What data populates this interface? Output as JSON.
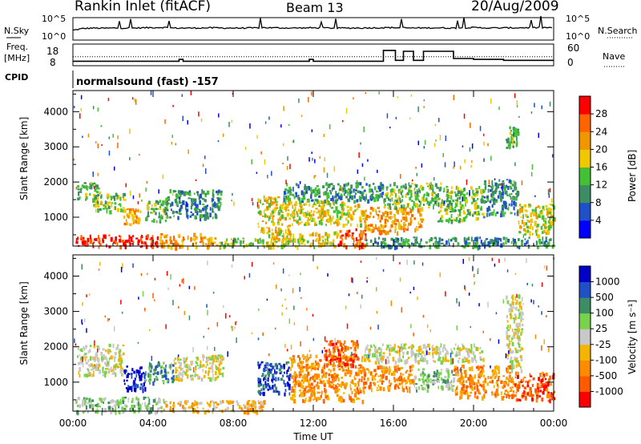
{
  "header": {
    "station": "Rankin Inlet (fitACF)",
    "beam": "Beam 13",
    "date": "20/Aug/2009"
  },
  "mode_label": "normalsound (fast) -157",
  "colors": {
    "power": [
      "#0000ff",
      "#1f50c8",
      "#3c8c64",
      "#44c034",
      "#f0c800",
      "#f09600",
      "#ff6400",
      "#ff0000"
    ],
    "velocity": [
      "#ff0000",
      "#ff5a00",
      "#ff8c00",
      "#f5b400",
      "#c8c8c8",
      "#78d24b",
      "#3c8c64",
      "#1f50c8",
      "#0000c8"
    ]
  },
  "chart_data": [
    {
      "type": "line",
      "name": "sky-noise-panel",
      "ylabel_left": "N.Sky",
      "ylabel_right": "N.Search",
      "yticks_left": [
        "10^5",
        "10^0"
      ],
      "yticks_right": [
        "10^5",
        "10^0"
      ],
      "xlim": [
        0,
        24
      ],
      "series": [
        {
          "name": "sky",
          "x": [
            0,
            0.5,
            1,
            1.5,
            2,
            3,
            4,
            4.5,
            5,
            6,
            7,
            8,
            9,
            9.5,
            10,
            11,
            12,
            13,
            14,
            15,
            16,
            17,
            18,
            19,
            20,
            21,
            22,
            23,
            24
          ],
          "y": [
            0.4,
            0.48,
            0.5,
            0.49,
            0.5,
            0.5,
            0.52,
            0.53,
            0.5,
            0.5,
            0.51,
            0.5,
            0.5,
            0.52,
            0.51,
            0.5,
            0.51,
            0.5,
            0.5,
            0.51,
            0.52,
            0.5,
            0.51,
            0.5,
            0.52,
            0.5,
            0.51,
            0.52,
            0.52
          ]
        }
      ]
    },
    {
      "type": "line",
      "name": "frequency-nave-panel",
      "ylabel_left": "Freq. [MHz]",
      "ylabel_right": "Nave",
      "yticks_left": [
        "18",
        "8"
      ],
      "yticks_right": [
        "60",
        "0"
      ],
      "xlim": [
        0,
        24
      ],
      "series": [
        {
          "name": "freq",
          "x": [
            0,
            5.2,
            5.3,
            5.5,
            7.8,
            8,
            10,
            10.2,
            11.8,
            12,
            14.6,
            15.5,
            16,
            16.1,
            16.5,
            17,
            17.5,
            19,
            20,
            21.5,
            24
          ],
          "y": [
            10.5,
            10.5,
            11.5,
            10.5,
            10.5,
            10.5,
            10.5,
            10.5,
            11.5,
            10.5,
            10.5,
            16.5,
            16.5,
            11,
            16,
            11,
            16,
            12,
            11.5,
            11,
            11
          ]
        },
        {
          "name": "nave_dotted",
          "x": [
            0,
            24
          ],
          "y": [
            13,
            13
          ]
        }
      ]
    },
    {
      "type": "heatmap",
      "name": "power-panel",
      "ylabel": "Slant Range [km]",
      "ylim": [
        180,
        4600
      ],
      "yticks": [
        1000,
        2000,
        3000,
        4000
      ],
      "xlim": [
        0,
        24
      ],
      "colorbar_label": "Power [dB]",
      "colorbar_ticks": [
        "4",
        "8",
        "12",
        "16",
        "20",
        "24",
        "28"
      ],
      "blobs": [
        {
          "x0": 0.1,
          "x1": 4.3,
          "r0": 180,
          "r1": 520,
          "v": 7
        },
        {
          "x0": 4.3,
          "x1": 7.2,
          "r0": 180,
          "r1": 560,
          "v": 5
        },
        {
          "x0": 7.2,
          "x1": 9.6,
          "r0": 180,
          "r1": 420,
          "v": 3
        },
        {
          "x0": 9.6,
          "x1": 13.2,
          "r0": 180,
          "r1": 600,
          "v": 4
        },
        {
          "x0": 13.2,
          "x1": 14.6,
          "r0": 180,
          "r1": 700,
          "v": 6
        },
        {
          "x0": 14.6,
          "x1": 24,
          "r0": 180,
          "r1": 450,
          "v": 2
        },
        {
          "x0": 0.2,
          "x1": 1.3,
          "r0": 1500,
          "r1": 2000,
          "v": 3
        },
        {
          "x0": 1.0,
          "x1": 2.6,
          "r0": 1200,
          "r1": 1700,
          "v": 3
        },
        {
          "x0": 2.5,
          "x1": 3.4,
          "r0": 800,
          "r1": 1300,
          "v": 5
        },
        {
          "x0": 3.6,
          "x1": 4.7,
          "r0": 900,
          "r1": 1500,
          "v": 3
        },
        {
          "x0": 4.6,
          "x1": 7.4,
          "r0": 1000,
          "r1": 1800,
          "v": 2
        },
        {
          "x0": 9.2,
          "x1": 10.8,
          "r0": 600,
          "r1": 1600,
          "v": 4
        },
        {
          "x0": 10.8,
          "x1": 14.5,
          "r0": 800,
          "r1": 1500,
          "v": 4
        },
        {
          "x0": 10.5,
          "x1": 15.5,
          "r0": 1500,
          "r1": 2000,
          "v": 2
        },
        {
          "x0": 14.5,
          "x1": 17.4,
          "r0": 600,
          "r1": 1300,
          "v": 5
        },
        {
          "x0": 15.5,
          "x1": 18.2,
          "r0": 1300,
          "r1": 2000,
          "v": 3
        },
        {
          "x0": 18.2,
          "x1": 20.5,
          "r0": 900,
          "r1": 1900,
          "v": 3
        },
        {
          "x0": 20.5,
          "x1": 22.2,
          "r0": 1100,
          "r1": 2100,
          "v": 2
        },
        {
          "x0": 22.2,
          "x1": 24,
          "r0": 500,
          "r1": 1400,
          "v": 4
        },
        {
          "x0": 21.6,
          "x1": 22.2,
          "r0": 3000,
          "r1": 3600,
          "v": 3
        }
      ]
    },
    {
      "type": "heatmap",
      "name": "velocity-panel",
      "ylabel": "Slant Range [km]",
      "ylim": [
        180,
        4600
      ],
      "yticks": [
        1000,
        2000,
        3000,
        4000
      ],
      "xlim": [
        0,
        24
      ],
      "xlabel": "Time UT",
      "xticks": [
        "00:00",
        "04:00",
        "08:00",
        "12:00",
        "16:00",
        "20:00",
        "00:00"
      ],
      "colorbar_label": "Velocity [m s^-1]",
      "colorbar_ticks": [
        "1000",
        "500",
        "100",
        "25",
        "-25",
        "-100",
        "-500",
        "-1000"
      ],
      "blobs": [
        {
          "x0": 0.1,
          "x1": 4.5,
          "r0": 180,
          "r1": 600,
          "v": 5
        },
        {
          "x0": 4.5,
          "x1": 9.5,
          "r0": 180,
          "r1": 500,
          "v": 3
        },
        {
          "x0": 0.2,
          "x1": 2.5,
          "r0": 1200,
          "r1": 2100,
          "v": 4
        },
        {
          "x0": 2.5,
          "x1": 3.6,
          "r0": 800,
          "r1": 1500,
          "v": 8
        },
        {
          "x0": 3.6,
          "x1": 5.0,
          "r0": 1000,
          "r1": 1600,
          "v": 6
        },
        {
          "x0": 5.0,
          "x1": 7.5,
          "r0": 1100,
          "r1": 1800,
          "v": 4
        },
        {
          "x0": 9.2,
          "x1": 10.8,
          "r0": 700,
          "r1": 1600,
          "v": 7
        },
        {
          "x0": 10.8,
          "x1": 14.5,
          "r0": 500,
          "r1": 1800,
          "v": 2
        },
        {
          "x0": 12.5,
          "x1": 14.2,
          "r0": 1500,
          "r1": 2200,
          "v": 1
        },
        {
          "x0": 14.5,
          "x1": 17.0,
          "r0": 800,
          "r1": 1500,
          "v": 2
        },
        {
          "x0": 14.5,
          "x1": 20.5,
          "r0": 1600,
          "r1": 2100,
          "v": 4
        },
        {
          "x0": 17.0,
          "x1": 19.0,
          "r0": 800,
          "r1": 1400,
          "v": 5
        },
        {
          "x0": 19.0,
          "x1": 22.0,
          "r0": 600,
          "r1": 1500,
          "v": 2
        },
        {
          "x0": 22.0,
          "x1": 24,
          "r0": 500,
          "r1": 1300,
          "v": 1
        },
        {
          "x0": 21.6,
          "x1": 22.4,
          "r0": 1300,
          "r1": 3500,
          "v": 4
        }
      ]
    }
  ],
  "bottom_axis": {
    "xlabel": "Time UT",
    "xticks": [
      "00:00",
      "04:00",
      "08:00",
      "12:00",
      "16:00",
      "20:00",
      "00:00"
    ]
  },
  "cpid_label": "CPID"
}
